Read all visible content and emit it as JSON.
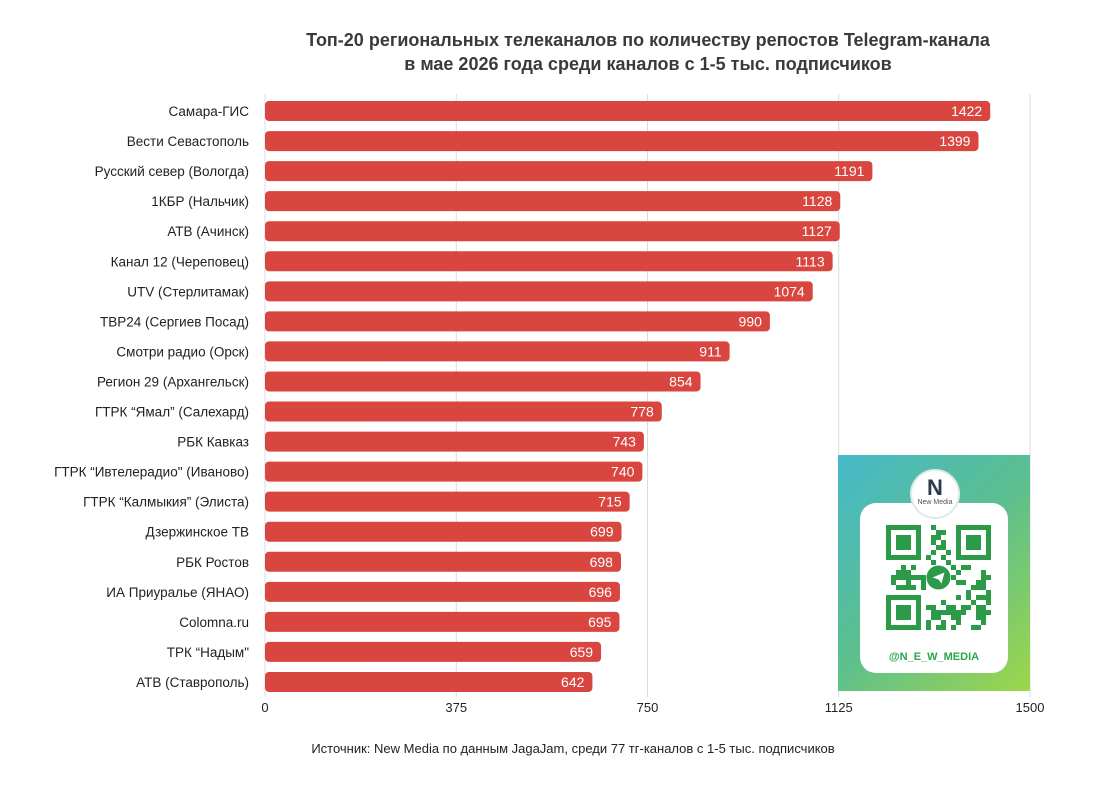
{
  "chart_data": {
    "type": "bar",
    "orientation": "horizontal",
    "title": "Топ-20 региональных телеканалов по количеству репостов Telegram-канала",
    "subtitle": "в мае 2026 года среди каналов с 1-5 тыс. подписчиков",
    "categories": [
      "Самара-ГИС",
      "Вести Севастополь",
      "Русский север (Вологда)",
      "1КБР (Нальчик)",
      "АТВ (Ачинск)",
      "Канал 12 (Череповец)",
      "UTV (Стерлитамак)",
      "ТВР24 (Сергиев Посад)",
      "Смотри радио (Орск)",
      "Регион 29 (Архангельск)",
      "ГТРК “Ямал” (Салехард)",
      "РБК Кавказ",
      "ГТРК “Ивтелерадио\" (Иваново)",
      "ГТРК “Калмыкия” (Элиста)",
      "Дзержинское ТВ",
      "РБК Ростов",
      "ИА Приуралье (ЯНАО)",
      "Colomna.ru",
      "ТРК “Надым\"",
      "АТВ (Ставрополь)"
    ],
    "values": [
      1422,
      1399,
      1191,
      1128,
      1127,
      1113,
      1074,
      990,
      911,
      854,
      778,
      743,
      740,
      715,
      699,
      698,
      696,
      695,
      659,
      642
    ],
    "xlim": [
      0,
      1500
    ],
    "xticks": [
      0,
      375,
      750,
      1125,
      1500
    ],
    "grid": true,
    "bar_color": "#d9453f",
    "data_labels": true
  },
  "source": "Источник: New Media по данным JagaJam, среди 77 тг-каналов с 1-5 тыс. подписчиков",
  "qr": {
    "logo_mark": "N",
    "logo_name": "New Media",
    "handle": "@N_E_W_MEDIA",
    "icon": "telegram-icon"
  }
}
